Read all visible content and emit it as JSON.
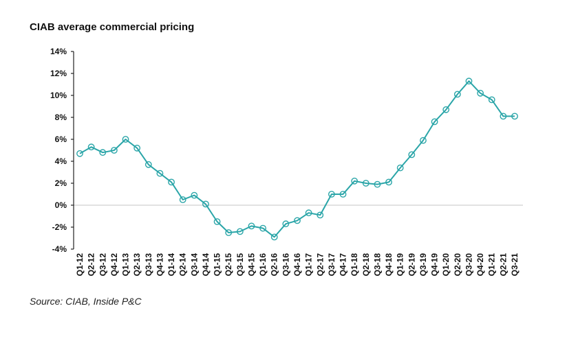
{
  "chart_data": {
    "type": "line",
    "title": "CIAB average commercial pricing",
    "source": "Source: CIAB, Inside P&C",
    "xlabel": "",
    "ylabel": "",
    "ylim": [
      -4,
      14
    ],
    "yticks": [
      -4,
      -2,
      0,
      2,
      4,
      6,
      8,
      10,
      12,
      14
    ],
    "ytick_labels": [
      "-4%",
      "-2%",
      "0%",
      "2%",
      "4%",
      "6%",
      "8%",
      "10%",
      "12%",
      "14%"
    ],
    "grid": false,
    "legend": "none",
    "color": "#2aa5a8",
    "categories": [
      "Q1-12",
      "Q2-12",
      "Q3-12",
      "Q4-12",
      "Q1-13",
      "Q2-13",
      "Q3-13",
      "Q4-13",
      "Q1-14",
      "Q2-14",
      "Q3-14",
      "Q4-14",
      "Q1-15",
      "Q2-15",
      "Q3-15",
      "Q4-15",
      "Q1-16",
      "Q2-16",
      "Q3-16",
      "Q4-16",
      "Q1-17",
      "Q2-17",
      "Q3-17",
      "Q4-17",
      "Q1-18",
      "Q2-18",
      "Q3-18",
      "Q4-18",
      "Q1-19",
      "Q2-19",
      "Q3-19",
      "Q4-19",
      "Q1-20",
      "Q2-20",
      "Q3-20",
      "Q4-20",
      "Q1-21",
      "Q2-21",
      "Q3-21"
    ],
    "series": [
      {
        "name": "CIAB average commercial pricing",
        "values": [
          4.7,
          5.3,
          4.8,
          5.0,
          6.0,
          5.2,
          3.7,
          2.9,
          2.1,
          0.5,
          0.9,
          0.1,
          -1.5,
          -2.5,
          -2.4,
          -1.9,
          -2.1,
          -2.9,
          -1.7,
          -1.4,
          -0.7,
          -0.9,
          1.0,
          1.0,
          2.2,
          2.0,
          1.9,
          2.1,
          3.4,
          4.6,
          5.9,
          7.6,
          8.7,
          10.1,
          11.3,
          10.2,
          9.6,
          8.1,
          8.1
        ]
      }
    ]
  }
}
